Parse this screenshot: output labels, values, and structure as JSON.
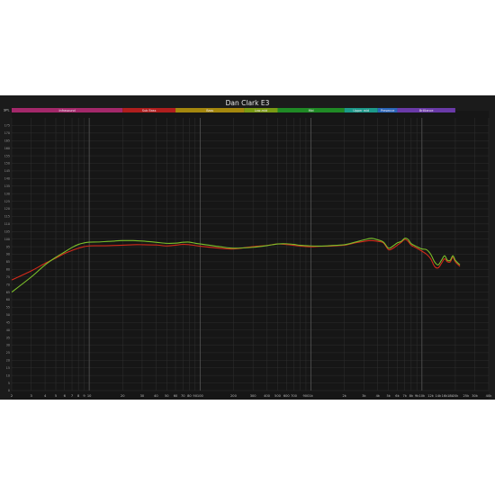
{
  "chart_data": {
    "type": "line",
    "title": "Dan Clark E3",
    "ylabel": "SPL",
    "xlabel": "",
    "x_scale": "log",
    "xlim": [
      2,
      40000
    ],
    "ylim": [
      0,
      180
    ],
    "grid": true,
    "x_tick_labels": [
      {
        "value": 2,
        "label": "2"
      },
      {
        "value": 3,
        "label": "3"
      },
      {
        "value": 4,
        "label": "4"
      },
      {
        "value": 5,
        "label": "5"
      },
      {
        "value": 6,
        "label": "6"
      },
      {
        "value": 7,
        "label": "7"
      },
      {
        "value": 8,
        "label": "8"
      },
      {
        "value": 9,
        "label": "9"
      },
      {
        "value": 10,
        "label": "10"
      },
      {
        "value": 20,
        "label": "20"
      },
      {
        "value": 30,
        "label": "30"
      },
      {
        "value": 40,
        "label": "40"
      },
      {
        "value": 50,
        "label": "50"
      },
      {
        "value": 60,
        "label": "60"
      },
      {
        "value": 70,
        "label": "70"
      },
      {
        "value": 80,
        "label": "80"
      },
      {
        "value": 90,
        "label": "90"
      },
      {
        "value": 100,
        "label": "100"
      },
      {
        "value": 200,
        "label": "200"
      },
      {
        "value": 300,
        "label": "300"
      },
      {
        "value": 400,
        "label": "400"
      },
      {
        "value": 500,
        "label": "500"
      },
      {
        "value": 600,
        "label": "600"
      },
      {
        "value": 700,
        "label": "700"
      },
      {
        "value": 900,
        "label": "900"
      },
      {
        "value": 1000,
        "label": "1k"
      },
      {
        "value": 2000,
        "label": "2k"
      },
      {
        "value": 3000,
        "label": "3k"
      },
      {
        "value": 4000,
        "label": "4k"
      },
      {
        "value": 5000,
        "label": "5k"
      },
      {
        "value": 6000,
        "label": "6k"
      },
      {
        "value": 7000,
        "label": "7k"
      },
      {
        "value": 8000,
        "label": "8k"
      },
      {
        "value": 9000,
        "label": "9k"
      },
      {
        "value": 10000,
        "label": "10k"
      },
      {
        "value": 12000,
        "label": "12k"
      },
      {
        "value": 14000,
        "label": "14k"
      },
      {
        "value": 16000,
        "label": "16k"
      },
      {
        "value": 18000,
        "label": "18k"
      },
      {
        "value": 20000,
        "label": "20k"
      },
      {
        "value": 25000,
        "label": "25k"
      },
      {
        "value": 30000,
        "label": "30k"
      },
      {
        "value": 40000,
        "label": "40k"
      }
    ],
    "y_ticks": [
      0,
      5,
      10,
      15,
      20,
      25,
      30,
      35,
      40,
      45,
      50,
      55,
      60,
      65,
      70,
      75,
      80,
      85,
      90,
      95,
      100,
      105,
      110,
      115,
      120,
      125,
      130,
      135,
      140,
      145,
      150,
      155,
      160,
      165,
      170,
      175
    ],
    "y_tick_labels": [
      "0",
      "5",
      "10",
      "15",
      "20",
      "25",
      "30",
      "35",
      "40",
      "45",
      "50",
      "55",
      "60",
      "65",
      "70",
      "75",
      "80",
      "85",
      "90",
      "95",
      "100",
      "105",
      "110",
      "115",
      "120",
      "125",
      "130",
      "135",
      "140",
      "145",
      "150",
      "155",
      "160",
      "165",
      "170",
      "175"
    ],
    "bands": [
      {
        "name": "Infrasound",
        "from": 2,
        "to": 20,
        "color": "#a3286a"
      },
      {
        "name": "Sub Bass",
        "from": 20,
        "to": 60,
        "color": "#b01e1e"
      },
      {
        "name": "Bass",
        "from": 60,
        "to": 250,
        "color": "#a4870e"
      },
      {
        "name": "Low-mid",
        "from": 250,
        "to": 500,
        "color": "#7a9a14"
      },
      {
        "name": "Mid",
        "from": 500,
        "to": 2000,
        "color": "#1f8a25"
      },
      {
        "name": "Upper mid",
        "from": 2000,
        "to": 4000,
        "color": "#1c9a8a"
      },
      {
        "name": "Presence",
        "from": 4000,
        "to": 6000,
        "color": "#2a66b8"
      },
      {
        "name": "Brilliance",
        "from": 6000,
        "to": 20000,
        "color": "#6a3aa8"
      }
    ],
    "series": [
      {
        "color": "#d42a1a",
        "x": [
          2,
          3,
          4,
          5,
          6,
          7,
          8,
          9,
          10,
          12,
          15,
          20,
          25,
          30,
          40,
          50,
          60,
          70,
          80,
          90,
          100,
          150,
          200,
          300,
          400,
          500,
          600,
          700,
          800,
          1000,
          1200,
          1500,
          2000,
          2500,
          3000,
          3500,
          4000,
          4500,
          5000,
          5500,
          6000,
          6500,
          7000,
          7500,
          8000,
          9000,
          10000,
          11000,
          12000,
          13000,
          14000,
          15000,
          16000,
          17000,
          18000,
          19000,
          20000,
          22000
        ],
        "y": [
          73,
          79,
          84,
          87.5,
          90.5,
          92.5,
          94,
          95,
          95.5,
          95.6,
          95.7,
          96,
          96.3,
          96.3,
          96.1,
          95.5,
          96,
          96.5,
          96.3,
          95.8,
          95.3,
          94,
          93.5,
          95,
          95.8,
          96.8,
          96.4,
          95.9,
          95.4,
          94.9,
          95.2,
          95.4,
          96,
          97.5,
          98.5,
          99,
          98.5,
          97.5,
          93,
          94,
          96,
          97.8,
          99.8,
          98.5,
          96,
          94,
          92,
          90,
          87,
          82,
          81,
          84,
          87,
          85,
          85,
          88,
          85,
          82
        ]
      },
      {
        "color": "#7cc02a",
        "x": [
          2,
          3,
          4,
          5,
          6,
          7,
          8,
          9,
          10,
          12,
          15,
          20,
          25,
          30,
          40,
          50,
          60,
          70,
          80,
          90,
          100,
          150,
          200,
          300,
          400,
          500,
          600,
          700,
          800,
          1000,
          1200,
          1500,
          2000,
          2500,
          3000,
          3500,
          4000,
          4500,
          5000,
          5500,
          6000,
          6500,
          7000,
          7500,
          8000,
          9000,
          10000,
          11000,
          12000,
          13000,
          14000,
          15000,
          16000,
          17000,
          18000,
          19000,
          20000,
          22000
        ],
        "y": [
          65,
          75,
          83,
          88,
          91.5,
          94.5,
          96.5,
          97.5,
          98,
          98.1,
          98.5,
          99,
          99,
          98.7,
          97.9,
          97.2,
          97.3,
          97.9,
          98,
          97.3,
          96.8,
          95,
          94,
          94.6,
          95.7,
          96.8,
          96.9,
          96.5,
          95.9,
          95.5,
          95.4,
          95.7,
          96.3,
          98,
          99.5,
          100.5,
          99.5,
          98,
          94,
          95.5,
          97.5,
          98.5,
          100.5,
          99.8,
          97,
          95,
          93.5,
          93,
          90,
          85,
          83,
          86,
          89,
          86,
          86,
          89,
          86,
          83
        ]
      }
    ]
  }
}
